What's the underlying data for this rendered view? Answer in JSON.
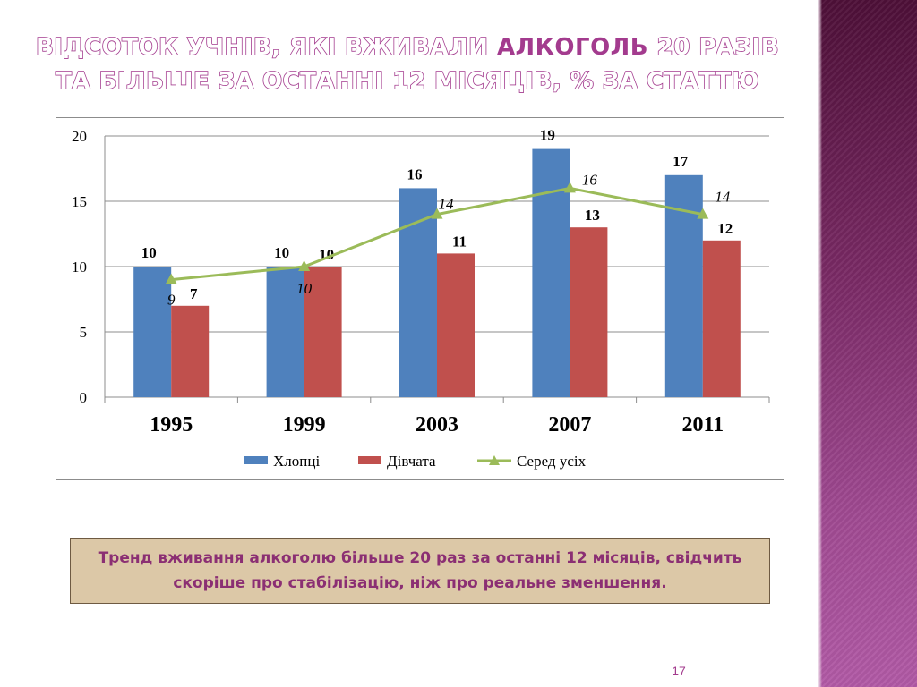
{
  "slide": {
    "title_line1_pre": "Відсоток учнів, які вживали ",
    "title_line1_hl": "алкоголь",
    "title_line1_post": " 20 разів",
    "title_line2": "та більше за останні 12 місяців, % за статтю",
    "note": "Тренд вживання алкоголю більше 20 раз за останні 12 місяців, свідчить скоріше про стабілізацію, ніж про реальне зменшення.",
    "page_number": "17"
  },
  "colors": {
    "boys": "#4f81bd",
    "girls": "#c0504d",
    "all": "#9bbb59",
    "accent": "#a33b8e",
    "side_band": "#7a2a65",
    "note_bg": "#dcc8a7"
  },
  "chart_data": {
    "type": "bar",
    "categories": [
      "1995",
      "1999",
      "2003",
      "2007",
      "2011"
    ],
    "series": [
      {
        "name": "Хлопці",
        "kind": "bar",
        "values": [
          10,
          10,
          16,
          19,
          17
        ],
        "labels": [
          "10",
          "10",
          "16",
          "19",
          "17"
        ]
      },
      {
        "name": "Дівчата",
        "kind": "bar",
        "values": [
          7,
          10,
          11,
          13,
          12
        ],
        "labels": [
          "7",
          "10",
          "11",
          "13",
          "12"
        ]
      },
      {
        "name": "Серед усіх",
        "kind": "line",
        "marker": "triangle",
        "values": [
          9,
          10,
          14,
          16,
          14
        ],
        "labels": [
          "9",
          "10",
          "14",
          "16",
          "14"
        ]
      }
    ],
    "y_ticks": [
      "0",
      "5",
      "10",
      "15",
      "20"
    ],
    "ylim": [
      0,
      20
    ],
    "grid": true,
    "legend_position": "bottom"
  }
}
